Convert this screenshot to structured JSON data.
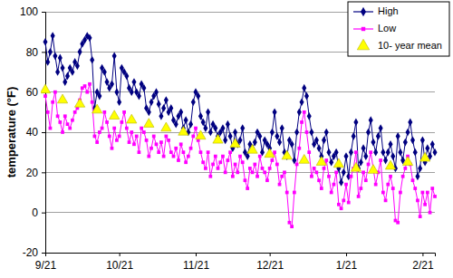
{
  "chart_data": {
    "type": "line",
    "ylabel": "temperature (°F)",
    "categories": [
      "9/21",
      null,
      null,
      null,
      null,
      null,
      null,
      null,
      null,
      null,
      null,
      null,
      null,
      null,
      null,
      null,
      null,
      null,
      null,
      null,
      null,
      null,
      null,
      null,
      null,
      null,
      null,
      null,
      null,
      null,
      "10/21",
      null,
      null,
      null,
      null,
      null,
      null,
      null,
      null,
      null,
      null,
      null,
      null,
      null,
      null,
      null,
      null,
      null,
      null,
      null,
      null,
      null,
      null,
      null,
      null,
      null,
      null,
      null,
      null,
      null,
      null,
      "11/21",
      null,
      null,
      null,
      null,
      null,
      null,
      null,
      null,
      null,
      null,
      null,
      null,
      null,
      null,
      null,
      null,
      null,
      null,
      null,
      null,
      null,
      null,
      null,
      null,
      null,
      null,
      null,
      null,
      null,
      "12/21",
      null,
      null,
      null,
      null,
      null,
      null,
      null,
      null,
      null,
      null,
      null,
      null,
      null,
      null,
      null,
      null,
      null,
      null,
      null,
      null,
      null,
      null,
      null,
      null,
      null,
      null,
      null,
      null,
      null,
      null,
      "1/21",
      null,
      null,
      null,
      null,
      null,
      null,
      null,
      null,
      null,
      null,
      null,
      null,
      null,
      null,
      null,
      null,
      null,
      null,
      null,
      null,
      null,
      null,
      null,
      null,
      null,
      null,
      null,
      null,
      null,
      null,
      "2/21",
      null,
      null,
      null,
      null,
      null
    ],
    "series": [
      {
        "name": "High",
        "color": "#000080",
        "marker": "diamond",
        "line_style": "solid",
        "values": [
          85,
          75,
          80,
          88,
          78,
          70,
          77,
          72,
          65,
          68,
          72,
          70,
          75,
          73,
          80,
          84,
          86,
          88,
          87,
          76,
          52,
          60,
          58,
          72,
          70,
          65,
          62,
          64,
          78,
          60,
          55,
          72,
          70,
          68,
          62,
          60,
          65,
          60,
          58,
          64,
          62,
          52,
          50,
          55,
          58,
          60,
          54,
          48,
          52,
          56,
          50,
          52,
          46,
          44,
          48,
          50,
          42,
          46,
          40,
          44,
          55,
          60,
          58,
          48,
          45,
          42,
          50,
          40,
          44,
          42,
          38,
          40,
          42,
          36,
          44,
          38,
          32,
          40,
          34,
          36,
          42,
          30,
          28,
          34,
          32,
          35,
          40,
          38,
          30,
          36,
          34,
          32,
          40,
          50,
          38,
          35,
          42,
          30,
          28,
          36,
          34,
          26,
          40,
          50,
          55,
          62,
          58,
          48,
          40,
          34,
          36,
          32,
          28,
          36,
          40,
          30,
          25,
          28,
          30,
          22,
          15,
          20,
          28,
          18,
          30,
          38,
          45,
          22,
          25,
          32,
          28,
          40,
          46,
          35,
          30,
          38,
          42,
          30,
          26,
          30,
          34,
          28,
          22,
          38,
          30,
          26,
          35,
          40,
          45,
          36,
          30,
          18,
          22,
          36,
          25,
          32,
          28,
          34,
          30
        ]
      },
      {
        "name": "Low",
        "color": "#ff00ff",
        "marker": "square",
        "line_style": "solid",
        "values": [
          58,
          50,
          42,
          55,
          60,
          48,
          45,
          40,
          48,
          44,
          42,
          46,
          50,
          52,
          56,
          62,
          63,
          60,
          64,
          55,
          38,
          35,
          40,
          42,
          50,
          45,
          38,
          32,
          42,
          36,
          38,
          45,
          50,
          42,
          35,
          40,
          34,
          38,
          30,
          42,
          40,
          36,
          28,
          32,
          38,
          34,
          30,
          35,
          28,
          38,
          36,
          30,
          28,
          32,
          26,
          34,
          30,
          25,
          28,
          32,
          38,
          42,
          36,
          30,
          25,
          22,
          30,
          18,
          24,
          28,
          22,
          25,
          28,
          20,
          26,
          30,
          18,
          24,
          20,
          28,
          25,
          16,
          12,
          22,
          20,
          24,
          18,
          28,
          22,
          20,
          16,
          22,
          26,
          30,
          24,
          14,
          18,
          20,
          10,
          -5,
          -7,
          10,
          24,
          32,
          45,
          50,
          40,
          30,
          18,
          22,
          20,
          16,
          12,
          22,
          26,
          18,
          10,
          14,
          20,
          4,
          2,
          6,
          14,
          5,
          18,
          22,
          30,
          8,
          12,
          20,
          16,
          24,
          30,
          22,
          14,
          20,
          26,
          10,
          6,
          14,
          18,
          12,
          -4,
          -5,
          10,
          18,
          22,
          28,
          24,
          16,
          12,
          6,
          -2,
          10,
          4,
          10,
          0,
          12,
          8
        ]
      },
      {
        "name": "10- year mean",
        "color": "#ffff00",
        "marker": "triangle",
        "line_style": "none",
        "values": [
          61,
          null,
          null,
          null,
          null,
          null,
          null,
          56,
          null,
          null,
          null,
          null,
          null,
          null,
          54,
          null,
          null,
          null,
          null,
          null,
          null,
          51,
          null,
          null,
          null,
          null,
          null,
          null,
          48,
          null,
          null,
          null,
          null,
          null,
          null,
          46,
          null,
          null,
          null,
          null,
          null,
          null,
          44,
          null,
          null,
          null,
          null,
          null,
          null,
          42,
          null,
          null,
          null,
          null,
          null,
          null,
          40,
          null,
          null,
          null,
          null,
          null,
          null,
          38,
          null,
          null,
          null,
          null,
          null,
          null,
          36,
          null,
          null,
          null,
          null,
          null,
          null,
          34,
          null,
          null,
          null,
          null,
          null,
          null,
          31,
          null,
          null,
          null,
          null,
          null,
          null,
          29,
          null,
          null,
          null,
          null,
          null,
          null,
          28,
          null,
          null,
          null,
          null,
          null,
          null,
          26,
          null,
          null,
          null,
          null,
          null,
          null,
          25,
          null,
          null,
          null,
          null,
          null,
          null,
          24,
          null,
          null,
          null,
          null,
          null,
          null,
          22,
          null,
          null,
          null,
          null,
          null,
          null,
          21,
          null,
          null,
          null,
          null,
          null,
          null,
          23,
          null,
          null,
          null,
          null,
          null,
          null,
          25,
          null,
          null,
          null,
          null,
          null,
          null,
          27,
          null,
          null,
          null,
          null
        ]
      }
    ],
    "ylim": [
      -20,
      100
    ],
    "yticks": [
      -20,
      0,
      20,
      40,
      60,
      80,
      100
    ],
    "grid": true,
    "legend": "upper right"
  }
}
